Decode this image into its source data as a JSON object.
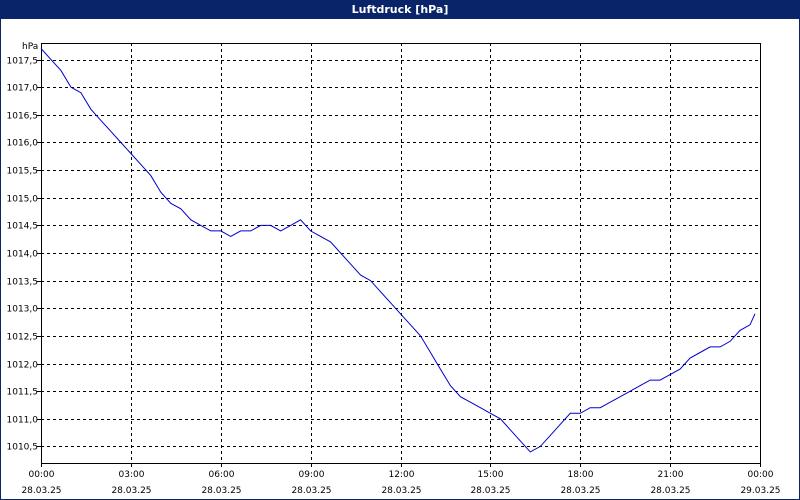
{
  "window": {
    "title": "Luftdruck [hPa]"
  },
  "chart_data": {
    "type": "line",
    "title": "Luftdruck [hPa]",
    "ylabel": "hPa",
    "xlabel": "",
    "ylim": [
      1010.2,
      1017.8
    ],
    "xlim": [
      "2025-03-28 00:00",
      "2025-03-29 00:00"
    ],
    "grid": true,
    "line_color": "#0000cc",
    "y_ticks": [
      "1010,5",
      "1011,0",
      "1011,5",
      "1012,0",
      "1012,5",
      "1013,0",
      "1013,5",
      "1014,0",
      "1014,5",
      "1015,0",
      "1015,5",
      "1016,0",
      "1016,5",
      "1017,0",
      "1017,5"
    ],
    "y_tick_values": [
      1010.5,
      1011.0,
      1011.5,
      1012.0,
      1012.5,
      1013.0,
      1013.5,
      1014.0,
      1014.5,
      1015.0,
      1015.5,
      1016.0,
      1016.5,
      1017.0,
      1017.5
    ],
    "x_ticks": [
      {
        "time": "00:00",
        "date": "28.03.25"
      },
      {
        "time": "03:00",
        "date": "28.03.25"
      },
      {
        "time": "06:00",
        "date": "28.03.25"
      },
      {
        "time": "09:00",
        "date": "28.03.25"
      },
      {
        "time": "12:00",
        "date": "28.03.25"
      },
      {
        "time": "15:00",
        "date": "28.03.25"
      },
      {
        "time": "18:00",
        "date": "28.03.25"
      },
      {
        "time": "21:00",
        "date": "28.03.25"
      },
      {
        "time": "00:00",
        "date": "29.03.25"
      }
    ],
    "series": [
      {
        "x": [
          "2025-03-28 00:00",
          "2025-03-28 00:20",
          "2025-03-28 00:40",
          "2025-03-28 01:00",
          "2025-03-28 01:20",
          "2025-03-28 01:40",
          "2025-03-28 02:00",
          "2025-03-28 02:20",
          "2025-03-28 02:40",
          "2025-03-28 03:00",
          "2025-03-28 03:20",
          "2025-03-28 03:40",
          "2025-03-28 04:00",
          "2025-03-28 04:20",
          "2025-03-28 04:40",
          "2025-03-28 05:00",
          "2025-03-28 05:20",
          "2025-03-28 05:40",
          "2025-03-28 06:00",
          "2025-03-28 06:20",
          "2025-03-28 06:40",
          "2025-03-28 07:00",
          "2025-03-28 07:20",
          "2025-03-28 07:40",
          "2025-03-28 08:00",
          "2025-03-28 08:20",
          "2025-03-28 08:40",
          "2025-03-28 09:00",
          "2025-03-28 09:20",
          "2025-03-28 09:40",
          "2025-03-28 10:00",
          "2025-03-28 10:20",
          "2025-03-28 10:40",
          "2025-03-28 11:00",
          "2025-03-28 11:20",
          "2025-03-28 11:40",
          "2025-03-28 12:00",
          "2025-03-28 12:20",
          "2025-03-28 12:40",
          "2025-03-28 13:00",
          "2025-03-28 13:20",
          "2025-03-28 13:40",
          "2025-03-28 14:00",
          "2025-03-28 14:20",
          "2025-03-28 14:40",
          "2025-03-28 15:00",
          "2025-03-28 15:20",
          "2025-03-28 15:40",
          "2025-03-28 16:00",
          "2025-03-28 16:20",
          "2025-03-28 16:40",
          "2025-03-28 17:00",
          "2025-03-28 17:20",
          "2025-03-28 17:40",
          "2025-03-28 18:00",
          "2025-03-28 18:20",
          "2025-03-28 18:40",
          "2025-03-28 19:00",
          "2025-03-28 19:20",
          "2025-03-28 19:40",
          "2025-03-28 20:00",
          "2025-03-28 20:20",
          "2025-03-28 20:40",
          "2025-03-28 21:00",
          "2025-03-28 21:20",
          "2025-03-28 21:40",
          "2025-03-28 22:00",
          "2025-03-28 22:20",
          "2025-03-28 22:40",
          "2025-03-28 23:00",
          "2025-03-28 23:20",
          "2025-03-28 23:40",
          "2025-03-28 23:50"
        ],
        "values": [
          1017.7,
          1017.5,
          1017.3,
          1017.0,
          1016.9,
          1016.6,
          1016.4,
          1016.2,
          1016.0,
          1015.8,
          1015.6,
          1015.4,
          1015.1,
          1014.9,
          1014.8,
          1014.6,
          1014.5,
          1014.4,
          1014.4,
          1014.3,
          1014.4,
          1014.4,
          1014.5,
          1014.5,
          1014.4,
          1014.5,
          1014.6,
          1014.4,
          1014.3,
          1014.2,
          1014.0,
          1013.8,
          1013.6,
          1013.5,
          1013.3,
          1013.1,
          1012.9,
          1012.7,
          1012.5,
          1012.2,
          1011.9,
          1011.6,
          1011.4,
          1011.3,
          1011.2,
          1011.1,
          1011.0,
          1010.8,
          1010.6,
          1010.4,
          1010.5,
          1010.7,
          1010.9,
          1011.1,
          1011.1,
          1011.2,
          1011.2,
          1011.3,
          1011.4,
          1011.5,
          1011.6,
          1011.7,
          1011.7,
          1011.8,
          1011.9,
          1012.1,
          1012.2,
          1012.3,
          1012.3,
          1012.4,
          1012.6,
          1012.7,
          1012.9
        ]
      }
    ]
  }
}
